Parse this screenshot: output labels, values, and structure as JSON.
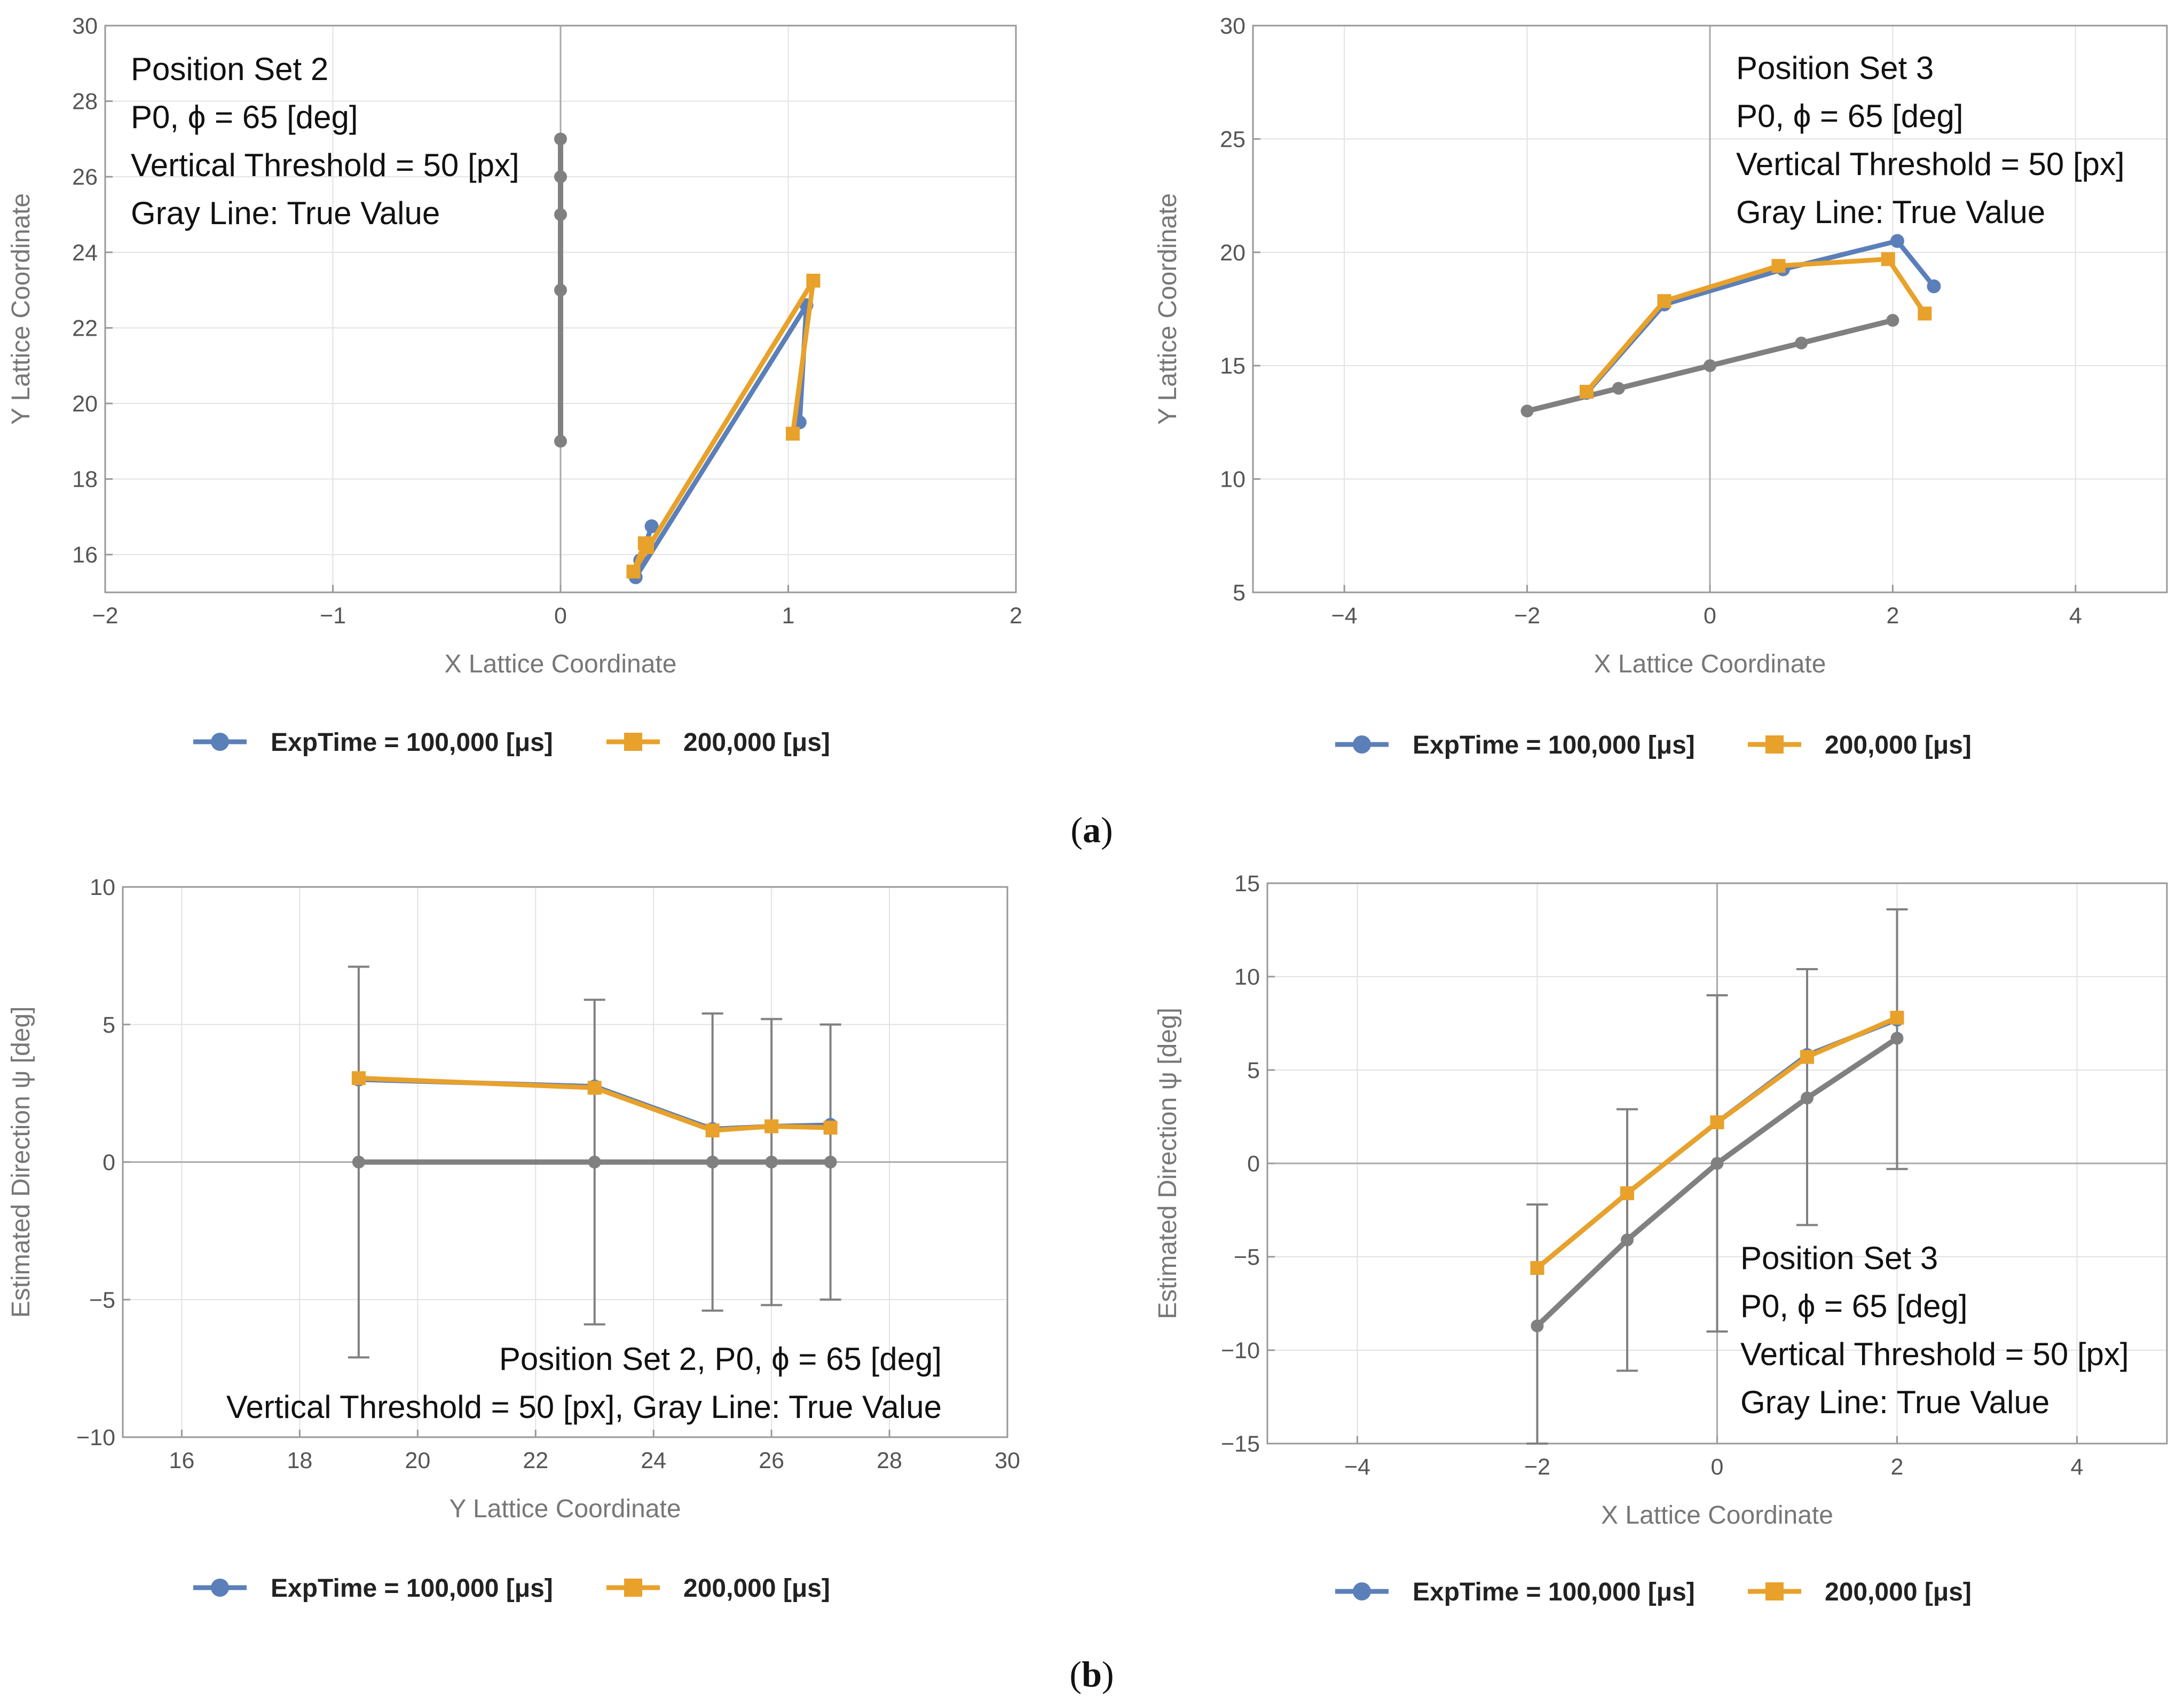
{
  "colors": {
    "exp100k": "#5b7fb8",
    "exp200k": "#e8a12a",
    "truth": "#808080"
  },
  "legend": {
    "series1_label": "ExpTime = 100,000 [μs]",
    "series2_label": "200,000 [μs]"
  },
  "captions": {
    "a": "a",
    "b": "b"
  },
  "chart_data": [
    {
      "id": "a1",
      "type": "line",
      "xlabel": "X Lattice Coordinate",
      "ylabel": "Y Lattice Coordinate",
      "xlim": [
        -2,
        2
      ],
      "ylim": [
        15,
        30
      ],
      "xticks": [
        -2,
        -1,
        0,
        1,
        2
      ],
      "yticks": [
        16,
        18,
        20,
        22,
        24,
        26,
        28,
        30
      ],
      "annotation": [
        "Position Set 2",
        "P0, ϕ = 65 [deg]",
        "Vertical Threshold = 50 [px]",
        "Gray Line: True Value"
      ],
      "series": [
        {
          "key": "truth",
          "points": [
            [
              0,
              19
            ],
            [
              0,
              23
            ],
            [
              0,
              25
            ],
            [
              0,
              26
            ],
            [
              0,
              27
            ]
          ]
        },
        {
          "key": "exp100k",
          "name": "ExpTime = 100,000 [μs]",
          "points": [
            [
              1.05,
              19.5
            ],
            [
              1.08,
              22.6
            ],
            [
              0.33,
              15.4
            ],
            [
              0.35,
              15.85
            ],
            [
              0.4,
              16.75
            ]
          ]
        },
        {
          "key": "exp200k",
          "name": "200,000 [μs]",
          "points": [
            [
              1.02,
              19.2
            ],
            [
              1.11,
              23.25
            ],
            [
              0.32,
              15.55
            ],
            [
              0.37,
              16.3
            ],
            [
              0.38,
              16.2
            ]
          ]
        }
      ]
    },
    {
      "id": "a2",
      "type": "line",
      "xlabel": "X Lattice Coordinate",
      "ylabel": "Y Lattice Coordinate",
      "xlim": [
        -5,
        5
      ],
      "ylim": [
        5,
        30
      ],
      "xticks": [
        -4,
        -2,
        0,
        2,
        4
      ],
      "yticks": [
        5,
        10,
        15,
        20,
        25,
        30
      ],
      "annotation": [
        "Position Set 3",
        "P0, ϕ = 65 [deg]",
        "Vertical Threshold = 50 [px]",
        "Gray Line: True Value"
      ],
      "series": [
        {
          "key": "truth",
          "points": [
            [
              -2,
              13
            ],
            [
              -1,
              14
            ],
            [
              0,
              15
            ],
            [
              1,
              16
            ],
            [
              2,
              17
            ]
          ]
        },
        {
          "key": "exp100k",
          "name": "ExpTime = 100,000 [μs]",
          "points": [
            [
              -1.35,
              13.8
            ],
            [
              -0.5,
              17.7
            ],
            [
              0.8,
              19.25
            ],
            [
              2.05,
              20.5
            ],
            [
              2.45,
              18.5
            ]
          ]
        },
        {
          "key": "exp200k",
          "name": "200,000 [μs]",
          "points": [
            [
              -1.35,
              13.85
            ],
            [
              -0.5,
              17.85
            ],
            [
              0.75,
              19.4
            ],
            [
              1.95,
              19.7
            ],
            [
              2.35,
              17.3
            ]
          ]
        }
      ]
    },
    {
      "id": "b1",
      "type": "line",
      "xlabel": "Y Lattice Coordinate",
      "ylabel": "Estimated Direction ψ [deg]",
      "xlim": [
        15,
        30
      ],
      "ylim": [
        -10,
        10
      ],
      "xticks": [
        16,
        18,
        20,
        22,
        24,
        26,
        28,
        30
      ],
      "yticks": [
        -10,
        -5,
        0,
        5,
        10
      ],
      "annotation": [
        "Position Set 2, P0, ϕ = 65 [deg]",
        "Vertical Threshold = 50 [px], Gray Line: True Value"
      ],
      "series": [
        {
          "key": "truth",
          "points": [
            [
              19,
              0
            ],
            [
              23,
              0
            ],
            [
              25,
              0
            ],
            [
              26,
              0
            ],
            [
              27,
              0
            ]
          ]
        },
        {
          "key": "exp100k",
          "name": "ExpTime = 100,000 [μs]",
          "points": [
            [
              19,
              3.0
            ],
            [
              23,
              2.75
            ],
            [
              25,
              1.2
            ],
            [
              26,
              1.3
            ],
            [
              27,
              1.35
            ]
          ]
        },
        {
          "key": "exp200k",
          "name": "200,000 [μs]",
          "points": [
            [
              19,
              3.05
            ],
            [
              23,
              2.7
            ],
            [
              25,
              1.15
            ],
            [
              26,
              1.3
            ],
            [
              27,
              1.25
            ]
          ]
        }
      ],
      "error_bars": [
        {
          "x": 19,
          "low": -7.1,
          "high": 7.1
        },
        {
          "x": 23,
          "low": -5.9,
          "high": 5.9
        },
        {
          "x": 25,
          "low": -5.4,
          "high": 5.4
        },
        {
          "x": 26,
          "low": -5.2,
          "high": 5.2
        },
        {
          "x": 27,
          "low": -5.0,
          "high": 5.0
        }
      ]
    },
    {
      "id": "b2",
      "type": "line",
      "xlabel": "X Lattice Coordinate",
      "ylabel": "Estimated Direction ψ [deg]",
      "xlim": [
        -5,
        5
      ],
      "ylim": [
        -15,
        15
      ],
      "xticks": [
        -4,
        -2,
        0,
        2,
        4
      ],
      "yticks": [
        -15,
        -10,
        -5,
        0,
        5,
        10,
        15
      ],
      "annotation": [
        "Position Set 3",
        "P0, ϕ = 65 [deg]",
        "Vertical Threshold = 50 [px]",
        "Gray Line: True Value"
      ],
      "series": [
        {
          "key": "truth",
          "points": [
            [
              -2,
              -8.7
            ],
            [
              -1,
              -4.1
            ],
            [
              0,
              0
            ],
            [
              1,
              3.5
            ],
            [
              2,
              6.7
            ]
          ]
        },
        {
          "key": "exp100k",
          "name": "ExpTime = 100,000 [μs]",
          "points": [
            [
              -2,
              -5.6
            ],
            [
              -1,
              -1.6
            ],
            [
              0,
              2.2
            ],
            [
              1,
              5.8
            ],
            [
              2,
              7.7
            ]
          ]
        },
        {
          "key": "exp200k",
          "name": "200,000 [μs]",
          "points": [
            [
              -2,
              -5.6
            ],
            [
              -1,
              -1.6
            ],
            [
              0,
              2.2
            ],
            [
              1,
              5.7
            ],
            [
              2,
              7.8
            ]
          ]
        }
      ],
      "error_bars": [
        {
          "x": -2,
          "low": -15,
          "high": -2.2
        },
        {
          "x": -1,
          "low": -11.1,
          "high": 2.9
        },
        {
          "x": 0,
          "low": -9.0,
          "high": 9.0
        },
        {
          "x": 1,
          "low": -3.3,
          "high": 10.4
        },
        {
          "x": 2,
          "low": -0.3,
          "high": 13.6
        }
      ]
    }
  ]
}
